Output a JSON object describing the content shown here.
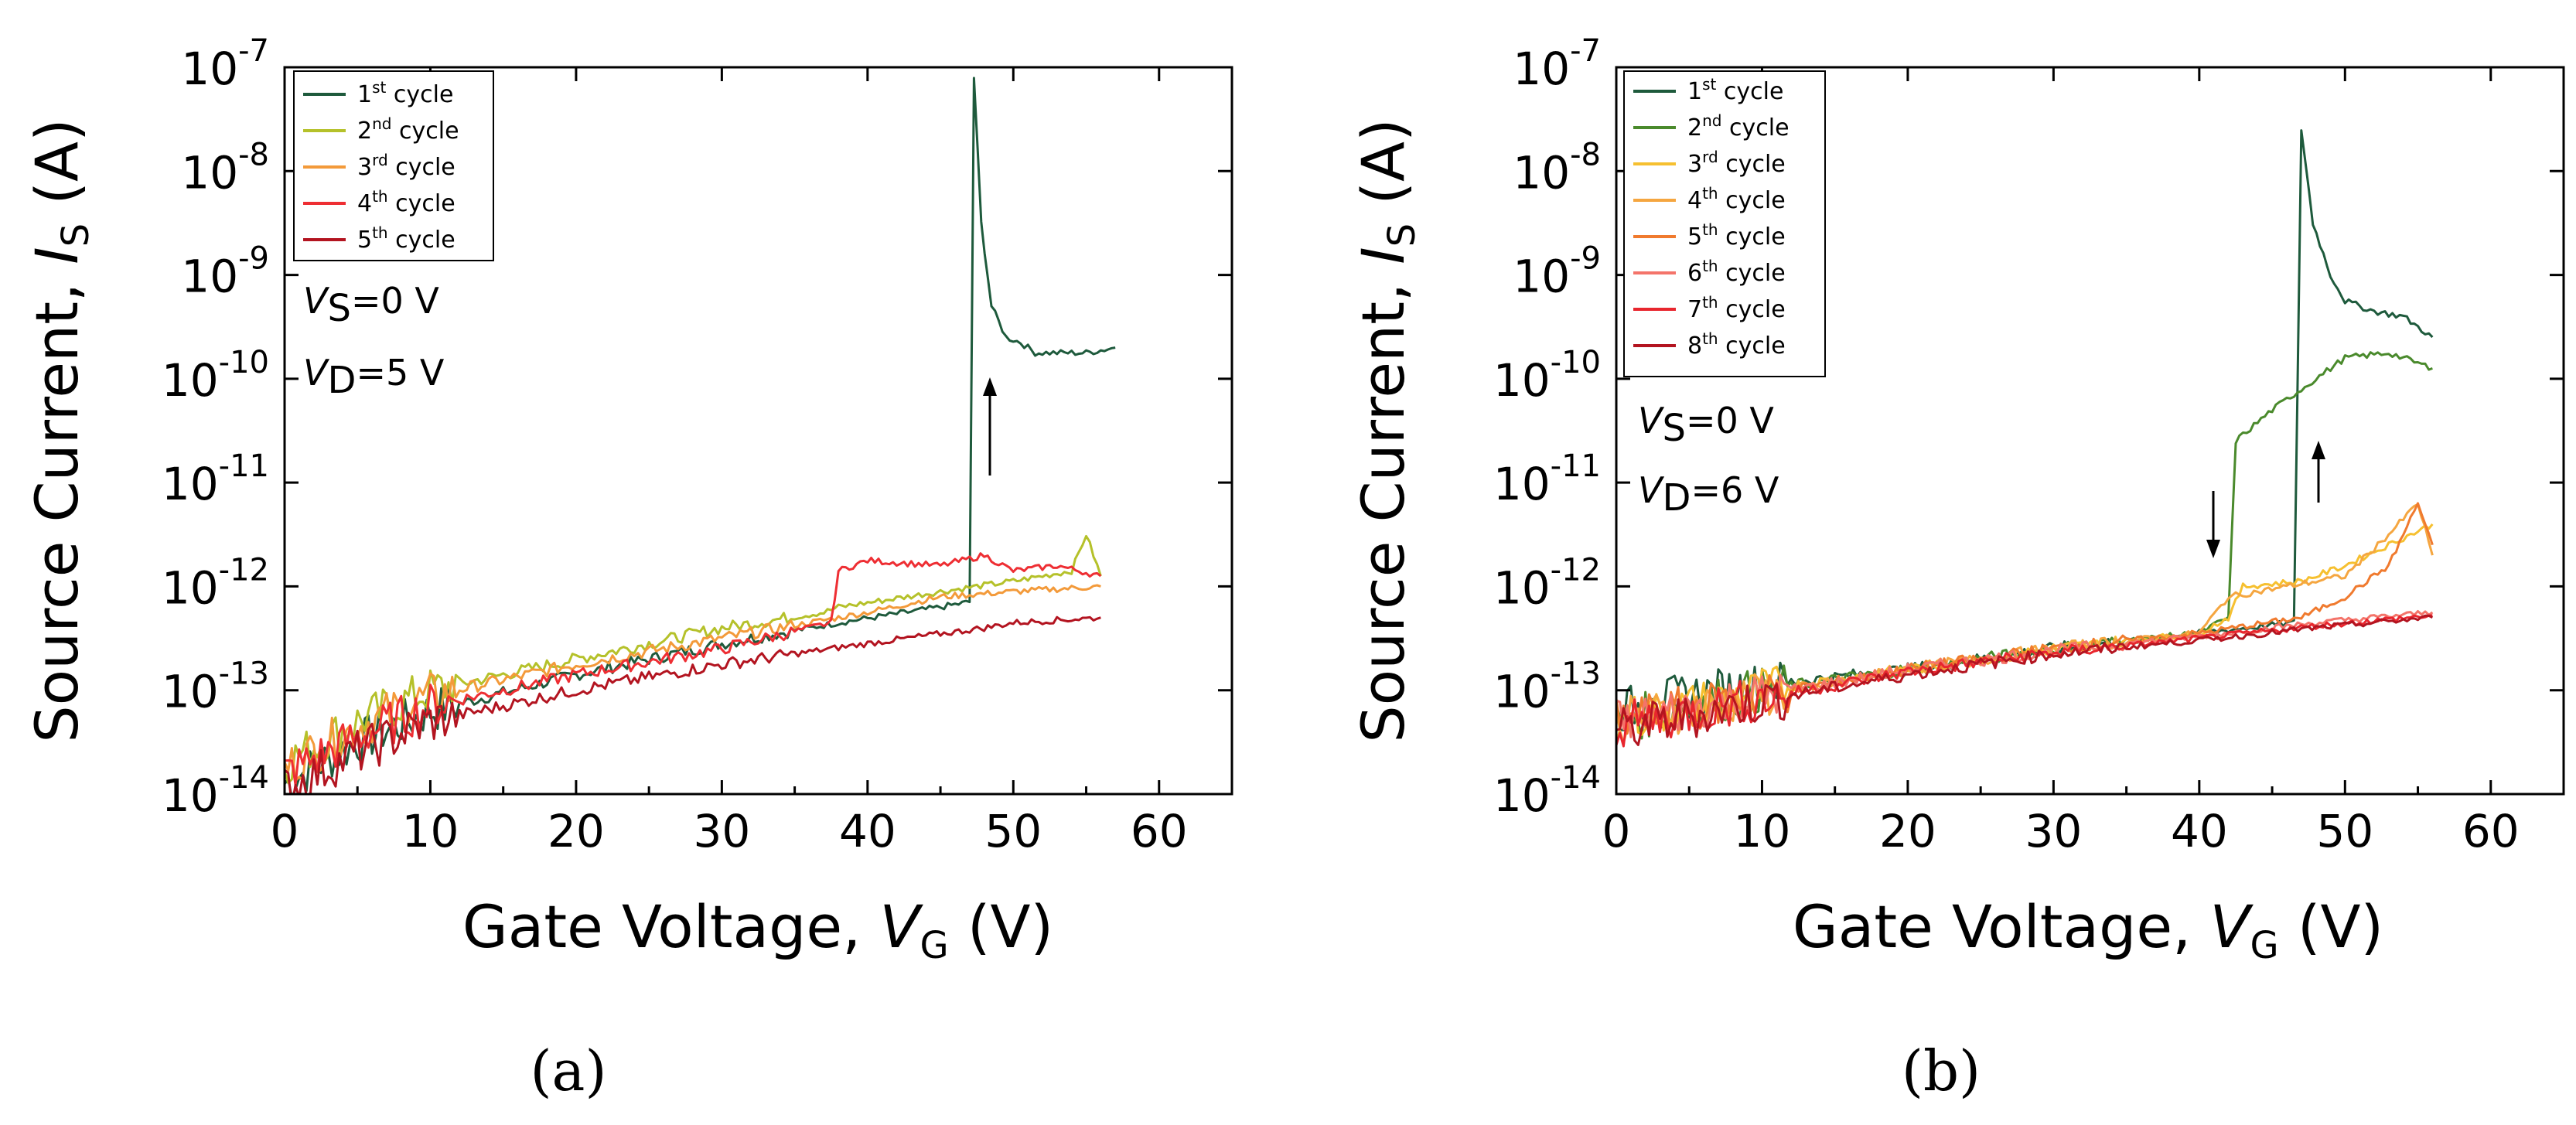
{
  "chart_data": [
    {
      "type": "line",
      "panel": "a",
      "caption": "(a)",
      "xlabel_main": "Gate Voltage, ",
      "xlabel_var": "V",
      "xlabel_sub": "G",
      "xlabel_unit": " (V)",
      "ylabel_main": "Source Current, ",
      "ylabel_var": "I",
      "ylabel_sub": "S",
      "ylabel_unit": " (A)",
      "yscale": "log",
      "xlim": [
        0,
        65
      ],
      "ylim_exp": [
        -14,
        -7
      ],
      "xticks": [
        "0",
        "10",
        "20",
        "30",
        "40",
        "50",
        "60"
      ],
      "yticks": [
        "-7",
        "-8",
        "-9",
        "-10",
        "-11",
        "-12",
        "-13",
        "-14"
      ],
      "ytick_base": "10",
      "legend_placement": "top-left",
      "annotations": {
        "vs_var": "V",
        "vs_sub": "S",
        "vs_text": "=0 V",
        "vd_var": "V",
        "vd_sub": "D",
        "vd_text": "=5 V"
      },
      "series": [
        {
          "name": "1st cycle",
          "label_num": "1",
          "label_sup": "st",
          "label_text": " cycle",
          "color": "#1e5a3c",
          "points": [
            [
              0,
              -13.9
            ],
            [
              5,
              -13.5
            ],
            [
              10,
              -13.2
            ],
            [
              20,
              -12.85
            ],
            [
              30,
              -12.55
            ],
            [
              38,
              -12.35
            ],
            [
              45,
              -12.2
            ],
            [
              47,
              -12.15
            ],
            [
              47.3,
              -7.1
            ],
            [
              47.8,
              -8.5
            ],
            [
              48.5,
              -9.3
            ],
            [
              49.5,
              -9.6
            ],
            [
              50.5,
              -9.65
            ],
            [
              51.5,
              -9.75
            ],
            [
              53,
              -9.75
            ],
            [
              55,
              -9.75
            ],
            [
              57,
              -9.7
            ]
          ]
        },
        {
          "name": "2nd cycle",
          "label_num": "2",
          "label_sup": "nd",
          "label_text": " cycle",
          "color": "#b5c12a",
          "points": [
            [
              0,
              -13.7
            ],
            [
              5,
              -13.3
            ],
            [
              10,
              -13.0
            ],
            [
              20,
              -12.7
            ],
            [
              30,
              -12.4
            ],
            [
              37,
              -12.25
            ],
            [
              38,
              -12.2
            ],
            [
              45,
              -12.05
            ],
            [
              50,
              -11.95
            ],
            [
              54,
              -11.85
            ],
            [
              55,
              -11.5
            ],
            [
              56,
              -11.9
            ]
          ]
        },
        {
          "name": "3rd cycle",
          "label_num": "3",
          "label_sup": "rd",
          "label_text": " cycle",
          "color": "#f39a3a",
          "points": [
            [
              0,
              -13.75
            ],
            [
              5,
              -13.35
            ],
            [
              10,
              -13.05
            ],
            [
              20,
              -12.75
            ],
            [
              30,
              -12.5
            ],
            [
              38,
              -12.3
            ],
            [
              40,
              -12.25
            ],
            [
              45,
              -12.1
            ],
            [
              50,
              -12.05
            ],
            [
              56,
              -12.0
            ]
          ]
        },
        {
          "name": "4th cycle",
          "label_num": "4",
          "label_sup": "th",
          "label_text": " cycle",
          "color": "#ee2e33",
          "points": [
            [
              0,
              -13.8
            ],
            [
              5,
              -13.45
            ],
            [
              10,
              -13.15
            ],
            [
              20,
              -12.85
            ],
            [
              30,
              -12.6
            ],
            [
              37.5,
              -12.35
            ],
            [
              38,
              -11.85
            ],
            [
              40,
              -11.75
            ],
            [
              45,
              -11.8
            ],
            [
              48,
              -11.7
            ],
            [
              50,
              -11.85
            ],
            [
              53,
              -11.8
            ],
            [
              56,
              -11.9
            ]
          ]
        },
        {
          "name": "5th cycle",
          "label_num": "5",
          "label_sup": "th",
          "label_text": " cycle",
          "color": "#b31420",
          "points": [
            [
              0,
              -13.95
            ],
            [
              5,
              -13.6
            ],
            [
              10,
              -13.3
            ],
            [
              20,
              -13.0
            ],
            [
              30,
              -12.75
            ],
            [
              40,
              -12.55
            ],
            [
              48,
              -12.4
            ],
            [
              50,
              -12.35
            ],
            [
              56,
              -12.3
            ]
          ]
        }
      ]
    },
    {
      "type": "line",
      "panel": "b",
      "caption": "(b)",
      "xlabel_main": "Gate Voltage, ",
      "xlabel_var": "V",
      "xlabel_sub": "G",
      "xlabel_unit": " (V)",
      "ylabel_main": "Source Current, ",
      "ylabel_var": "I",
      "ylabel_sub": "S",
      "ylabel_unit": " (A)",
      "yscale": "log",
      "xlim": [
        0,
        65
      ],
      "ylim_exp": [
        -14,
        -7
      ],
      "xticks": [
        "0",
        "10",
        "20",
        "30",
        "40",
        "50",
        "60"
      ],
      "yticks": [
        "-7",
        "-8",
        "-9",
        "-10",
        "-11",
        "-12",
        "-13",
        "-14"
      ],
      "ytick_base": "10",
      "legend_placement": "top-left",
      "annotations": {
        "vs_var": "V",
        "vs_sub": "S",
        "vs_text": "=0 V",
        "vd_var": "V",
        "vd_sub": "D",
        "vd_text": "=6 V"
      },
      "series": [
        {
          "name": "1st cycle",
          "label_num": "1",
          "label_sup": "st",
          "label_text": " cycle",
          "color": "#1e5a3c",
          "points": [
            [
              0,
              -13.2
            ],
            [
              5,
              -13.05
            ],
            [
              10,
              -12.95
            ],
            [
              20,
              -12.8
            ],
            [
              30,
              -12.6
            ],
            [
              40,
              -12.45
            ],
            [
              46.5,
              -12.35
            ],
            [
              47,
              -7.6
            ],
            [
              47.8,
              -8.5
            ],
            [
              49,
              -9.0
            ],
            [
              50,
              -9.25
            ],
            [
              52,
              -9.35
            ],
            [
              54,
              -9.4
            ],
            [
              56,
              -9.6
            ]
          ]
        },
        {
          "name": "2nd cycle",
          "label_num": "2",
          "label_sup": "nd",
          "label_text": " cycle",
          "color": "#4a8a2c",
          "points": [
            [
              0,
              -13.3
            ],
            [
              10,
              -13.0
            ],
            [
              20,
              -12.8
            ],
            [
              30,
              -12.6
            ],
            [
              40,
              -12.45
            ],
            [
              42,
              -12.3
            ],
            [
              42.5,
              -10.6
            ],
            [
              45,
              -10.3
            ],
            [
              48,
              -10.0
            ],
            [
              50,
              -9.8
            ],
            [
              53,
              -9.75
            ],
            [
              56,
              -9.9
            ]
          ]
        },
        {
          "name": "3rd cycle",
          "label_num": "3",
          "label_sup": "rd",
          "label_text": " cycle",
          "color": "#f6c030",
          "points": [
            [
              0,
              -13.3
            ],
            [
              10,
              -13.0
            ],
            [
              20,
              -12.8
            ],
            [
              30,
              -12.6
            ],
            [
              40,
              -12.45
            ],
            [
              42,
              -12.3
            ],
            [
              43,
              -12.0
            ],
            [
              47,
              -11.95
            ],
            [
              50,
              -11.8
            ],
            [
              53,
              -11.6
            ],
            [
              56,
              -11.4
            ]
          ]
        },
        {
          "name": "4th cycle",
          "label_num": "4",
          "label_sup": "th",
          "label_text": " cycle",
          "color": "#f5a640",
          "points": [
            [
              0,
              -13.3
            ],
            [
              10,
              -13.05
            ],
            [
              20,
              -12.8
            ],
            [
              30,
              -12.6
            ],
            [
              40,
              -12.45
            ],
            [
              42,
              -12.1
            ],
            [
              46,
              -12.0
            ],
            [
              50,
              -11.9
            ],
            [
              53,
              -11.5
            ],
            [
              55,
              -11.2
            ],
            [
              56,
              -11.7
            ]
          ]
        },
        {
          "name": "5th cycle",
          "label_num": "5",
          "label_sup": "th",
          "label_text": " cycle",
          "color": "#f07a2e",
          "points": [
            [
              0,
              -13.3
            ],
            [
              10,
              -13.05
            ],
            [
              20,
              -12.8
            ],
            [
              30,
              -12.6
            ],
            [
              40,
              -12.45
            ],
            [
              47,
              -12.3
            ],
            [
              50,
              -12.1
            ],
            [
              53,
              -11.8
            ],
            [
              55,
              -11.2
            ],
            [
              56,
              -11.6
            ]
          ]
        },
        {
          "name": "6th cycle",
          "label_num": "6",
          "label_sup": "th",
          "label_text": " cycle",
          "color": "#f4746a",
          "points": [
            [
              0,
              -13.3
            ],
            [
              10,
              -13.05
            ],
            [
              20,
              -12.8
            ],
            [
              30,
              -12.62
            ],
            [
              40,
              -12.48
            ],
            [
              48,
              -12.35
            ],
            [
              52,
              -12.3
            ],
            [
              56,
              -12.25
            ]
          ]
        },
        {
          "name": "7th cycle",
          "label_num": "7",
          "label_sup": "th",
          "label_text": " cycle",
          "color": "#e8262e",
          "points": [
            [
              0,
              -13.35
            ],
            [
              10,
              -13.08
            ],
            [
              20,
              -12.82
            ],
            [
              30,
              -12.64
            ],
            [
              40,
              -12.5
            ],
            [
              48,
              -12.38
            ],
            [
              52,
              -12.33
            ],
            [
              56,
              -12.28
            ]
          ]
        },
        {
          "name": "8th cycle",
          "label_num": "8",
          "label_sup": "th",
          "label_text": " cycle",
          "color": "#b31420",
          "points": [
            [
              0,
              -13.4
            ],
            [
              10,
              -13.1
            ],
            [
              20,
              -12.85
            ],
            [
              30,
              -12.65
            ],
            [
              40,
              -12.52
            ],
            [
              48,
              -12.4
            ],
            [
              52,
              -12.35
            ],
            [
              56,
              -12.3
            ]
          ]
        }
      ]
    }
  ]
}
